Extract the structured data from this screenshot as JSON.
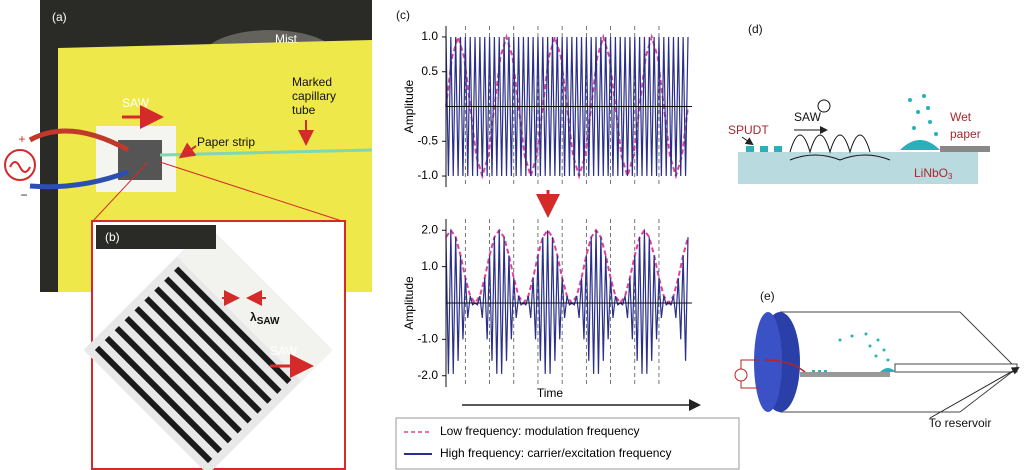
{
  "panel_a": {
    "label": "(a)",
    "mist": "Mist",
    "saw": "SAW",
    "paper_strip": "Paper strip",
    "capillary": [
      "Marked",
      "capillary",
      "tube"
    ],
    "plus": "+",
    "minus": "−"
  },
  "panel_b": {
    "label": "(b)",
    "lambda": "λ",
    "lambda_sub": "SAW",
    "saw": "SAW"
  },
  "panel_c": {
    "label": "(c)"
  },
  "panel_d": {
    "label": "(d)",
    "spudt": "SPUDT",
    "saw": "SAW",
    "wet_paper": [
      "Wet",
      "paper"
    ],
    "substrate": "LiNbO",
    "substrate_sub": "3"
  },
  "panel_e": {
    "label": "(e)",
    "reservoir": "To reservoir"
  },
  "chart_data": [
    {
      "type": "line",
      "y_label": "Amplitude",
      "ylim": [
        -1.1,
        1.1
      ],
      "yticks": [
        {
          "value": 1,
          "label": "1.0"
        },
        0.5,
        {
          "value": -0.5,
          "label": "-0.5"
        },
        {
          "value": -1,
          "label": "-1.0"
        }
      ],
      "series": [
        {
          "color": "#e0409a",
          "style": "dashed",
          "values": [
            0,
            0.71,
            1,
            0.71,
            0,
            -0.71,
            -1,
            -0.71,
            0,
            0.71,
            1,
            0.71,
            0,
            -0.71,
            -1,
            -0.71,
            0,
            0.71,
            1,
            0.71,
            0,
            -0.71,
            -1,
            -0.71,
            0,
            0.71,
            1,
            0.71,
            0,
            -0.71,
            -1,
            -0.71,
            0,
            0.71,
            1,
            0.71,
            0,
            -0.71,
            -1,
            -0.71,
            0
          ]
        },
        {
          "color": "#2a2f8a",
          "style": "solid",
          "values": [
            1,
            -1,
            1,
            -1,
            1,
            -1,
            1,
            -1,
            1,
            -1,
            1,
            -1,
            1,
            -1,
            1,
            -1,
            1,
            -1,
            1,
            -1,
            1,
            -1,
            1,
            -1,
            1,
            -1,
            1,
            -1,
            1,
            -1,
            1,
            -1,
            1,
            -1,
            1,
            -1,
            1,
            -1,
            1,
            -1,
            1,
            -1,
            1,
            -1,
            1,
            -1,
            1,
            -1,
            1,
            -1,
            1,
            -1,
            1,
            -1,
            1,
            -1,
            1,
            -1,
            1,
            -1,
            1,
            -1,
            1,
            -1,
            1,
            -1,
            1,
            -1,
            1,
            -1,
            1,
            -1,
            1,
            -1,
            1,
            -1,
            1,
            -1,
            1,
            -1,
            1,
            -1,
            1,
            -1,
            1,
            -1,
            1,
            -1,
            1,
            -1,
            1,
            -1,
            1,
            -1,
            1,
            -1,
            1,
            -1,
            1,
            -1,
            1
          ]
        }
      ]
    },
    {
      "type": "line",
      "y_label": "Amplitude",
      "x_label": "Time",
      "ylim": [
        -2.2,
        2.2
      ],
      "yticks": [
        {
          "value": 2,
          "label": "2.0"
        },
        {
          "value": 1,
          "label": "1.0"
        },
        {
          "value": -1,
          "label": "-1.0"
        },
        {
          "value": -2,
          "label": "-2.0"
        }
      ],
      "series": [
        {
          "name": "Low frequency: modulation frequency",
          "color": "#e0409a",
          "style": "dashed",
          "values": [
            1.81,
            2,
            1.81,
            1.31,
            0.69,
            0.19,
            0,
            0.19,
            0.69,
            1.31,
            1.81,
            2,
            1.81,
            1.31,
            0.69,
            0.19,
            0,
            0.19,
            0.69,
            1.31,
            1.81,
            2,
            1.81,
            1.31,
            0.69,
            0.19,
            0,
            0.19,
            0.69,
            1.31,
            1.81,
            2,
            1.81,
            1.31,
            0.69,
            0.19,
            0,
            0.19,
            0.69,
            1.31,
            1.81,
            2,
            1.81,
            1.31,
            0.69,
            0.19,
            0,
            0.19,
            0.69,
            1.31,
            1.81
          ]
        },
        {
          "name": "High frequency: carrier/excitation frequency",
          "color": "#2a2f8a",
          "style": "solid",
          "values": [
            1.81,
            -1.95,
            2,
            -1.95,
            1.81,
            -1.59,
            1.31,
            -1,
            0.69,
            -0.41,
            0.19,
            -0.05,
            0,
            -0.05,
            0.19,
            -0.41,
            0.69,
            -1,
            1.31,
            -1.59,
            1.81,
            -1.95,
            2,
            -1.95,
            1.81,
            -1.59,
            1.31,
            -1,
            0.69,
            -0.41,
            0.19,
            -0.05,
            0,
            -0.05,
            0.19,
            -0.41,
            0.69,
            -1,
            1.31,
            -1.59,
            1.81,
            -1.95,
            2,
            -1.95,
            1.81,
            -1.59,
            1.31,
            -1,
            0.69,
            -0.41,
            0.19,
            -0.05,
            0,
            -0.05,
            0.19,
            -0.41,
            0.69,
            -1,
            1.31,
            -1.59,
            1.81,
            -1.95,
            2,
            -1.95,
            1.81,
            -1.59,
            1.31,
            -1,
            0.69,
            -0.41,
            0.19,
            -0.05,
            0,
            -0.05,
            0.19,
            -0.41,
            0.69,
            -1,
            1.31,
            -1.59,
            1.81,
            -1.95,
            2,
            -1.95,
            1.81,
            -1.59,
            1.31,
            -1,
            0.69,
            -0.41,
            0.19,
            -0.05,
            0,
            -0.05,
            0.19,
            -0.41,
            0.69,
            -1,
            1.31,
            -1.59,
            1.81
          ]
        }
      ]
    }
  ]
}
